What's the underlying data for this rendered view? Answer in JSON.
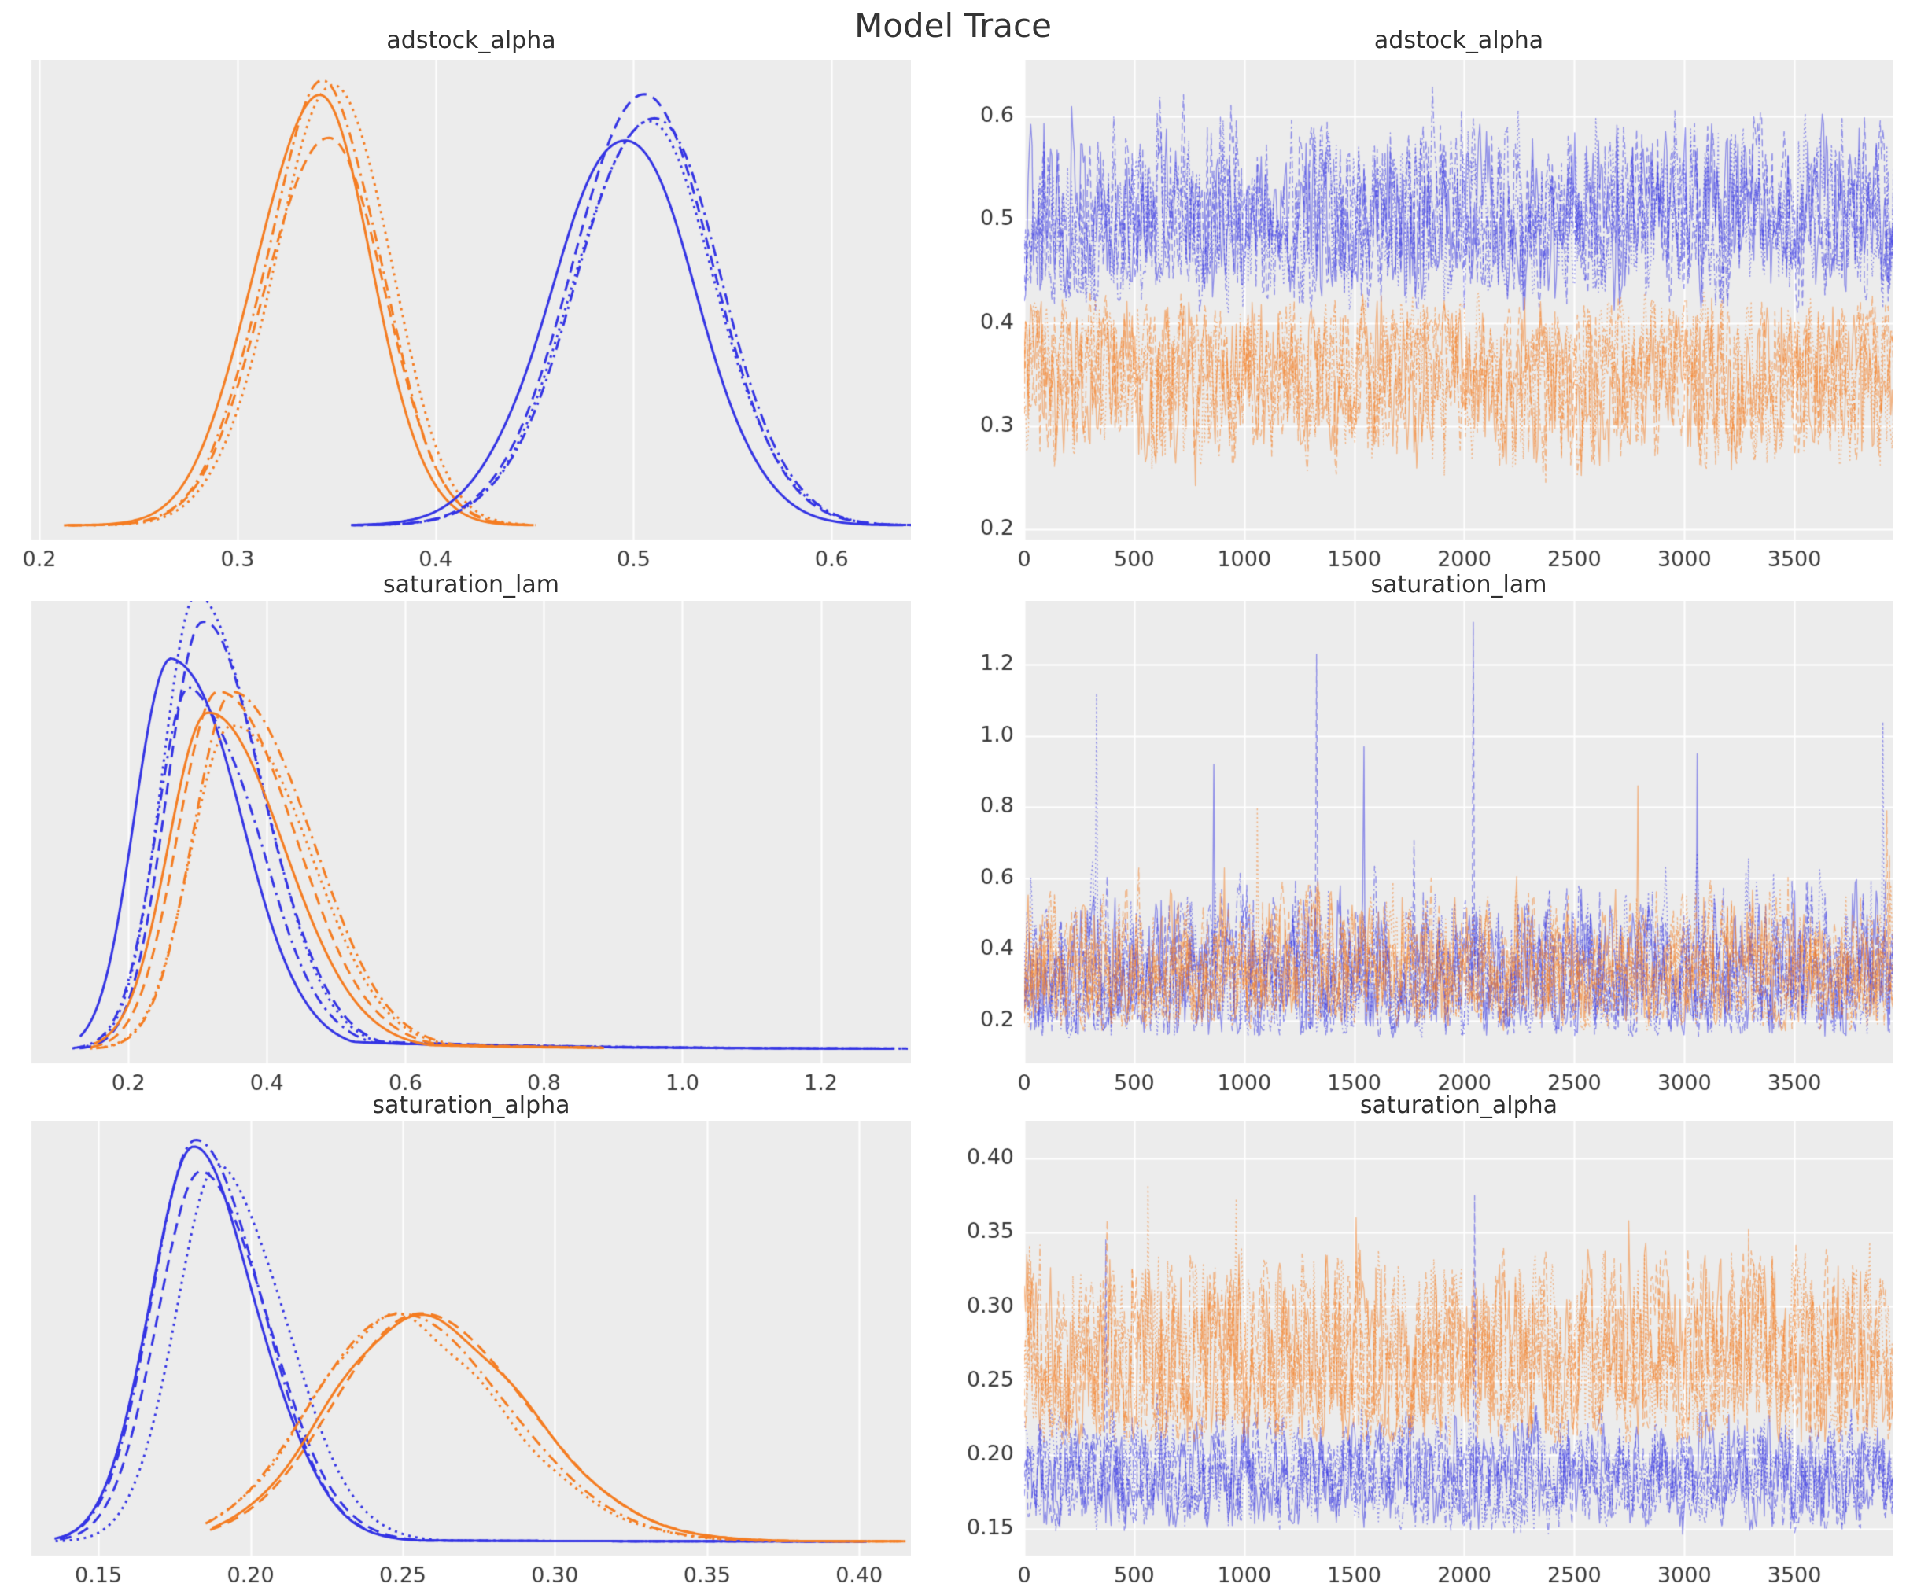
{
  "title": "Model Trace",
  "style": {
    "figure_bg": "#ffffff",
    "axes_bg": "#ececec",
    "grid_color": "#ffffff",
    "title_color": "#2f2f2f",
    "tick_color": "#3a3a3a",
    "chain_colors": {
      "blue": "#3434e4",
      "orange": "#f57d22"
    },
    "linestyles": [
      "solid",
      "dashed",
      "dashdot",
      "dotted"
    ],
    "trace_alpha": 0.5
  },
  "chart_data": [
    {
      "id": "density-adstock_alpha",
      "type": "line",
      "kind": "kde",
      "title": "adstock_alpha",
      "xlabel": "",
      "ylabel": "",
      "grid": "vertical",
      "legend": "none",
      "chains_per_series": 4,
      "xlim": [
        0.196,
        0.64
      ],
      "xticks": [
        0.2,
        0.3,
        0.4,
        0.5,
        0.6
      ],
      "xtick_format": 1,
      "jitter_h": 0.05,
      "jitter_x": 0.008,
      "series": [
        {
          "name": "chain-orange",
          "color": "orange",
          "peak": 0.345,
          "sd_left": 0.031,
          "sd_right": 0.027,
          "height": 1.0,
          "start": 0.215,
          "end": 0.447
        },
        {
          "name": "chain-blue",
          "color": "blue",
          "peak": 0.503,
          "sd_left": 0.037,
          "sd_right": 0.035,
          "height": 0.96,
          "start": 0.357,
          "end": 0.637
        }
      ]
    },
    {
      "id": "trace-adstock_alpha",
      "type": "line",
      "kind": "trace",
      "title": "adstock_alpha",
      "xlabel": "",
      "ylabel": "",
      "grid": "both",
      "legend": "none",
      "chains_per_series": 4,
      "xlim": [
        0,
        3950
      ],
      "xticks": [
        0,
        500,
        1000,
        1500,
        2000,
        2500,
        3000,
        3500
      ],
      "xtick_format": 0,
      "ylim": [
        0.19,
        0.655
      ],
      "yticks": [
        0.2,
        0.3,
        0.4,
        0.5,
        0.6
      ],
      "ytick_format": 1,
      "series": [
        {
          "name": "chain-blue",
          "color": "blue",
          "mean": 0.502,
          "sd": 0.04,
          "band": [
            0.405,
            0.638
          ],
          "spike_prob": 0,
          "spike_scale": 0,
          "spikes": []
        },
        {
          "name": "chain-orange",
          "color": "orange",
          "mean": 0.347,
          "sd": 0.037,
          "band": [
            0.224,
            0.434
          ],
          "spike_prob": 0,
          "spike_scale": 0,
          "spikes": []
        }
      ]
    },
    {
      "id": "density-saturation_lam",
      "type": "line",
      "kind": "kde",
      "title": "saturation_lam",
      "xlabel": "",
      "ylabel": "",
      "grid": "vertical",
      "legend": "none",
      "chains_per_series": 4,
      "xlim": [
        0.06,
        1.33
      ],
      "xticks": [
        0.2,
        0.4,
        0.6,
        0.8,
        1.0,
        1.2
      ],
      "xtick_format": 1,
      "jitter_h": 0.12,
      "jitter_x": 0.03,
      "series": [
        {
          "name": "chain-blue",
          "color": "blue",
          "peak": 0.285,
          "sd_left": 0.05,
          "sd_right": 0.092,
          "height": 1.0,
          "start": 0.125,
          "end": 1.315,
          "tail": {
            "amp": 0.045,
            "len": 0.28
          }
        },
        {
          "name": "chain-orange",
          "color": "orange",
          "peak": 0.335,
          "sd_left": 0.057,
          "sd_right": 0.108,
          "height": 0.93,
          "start": 0.148,
          "end": 0.875,
          "tail": {
            "amp": 0.05,
            "len": 0.22
          }
        }
      ]
    },
    {
      "id": "trace-saturation_lam",
      "type": "line",
      "kind": "trace",
      "title": "saturation_lam",
      "xlabel": "",
      "ylabel": "",
      "grid": "both",
      "legend": "none",
      "chains_per_series": 4,
      "xlim": [
        0,
        3950
      ],
      "xticks": [
        0,
        500,
        1000,
        1500,
        2000,
        2500,
        3000,
        3500
      ],
      "xtick_format": 0,
      "ylim": [
        0.08,
        1.38
      ],
      "yticks": [
        0.2,
        0.4,
        0.6,
        0.8,
        1.0,
        1.2
      ],
      "ytick_format": 1,
      "series": [
        {
          "name": "chain-blue",
          "color": "blue",
          "mean": 0.325,
          "sd": 0.095,
          "band": [
            0.148,
            0.78
          ],
          "spike_prob": 0.015,
          "spike_scale": 0.3,
          "spikes": [
            {
              "x": 330,
              "y": 1.12,
              "c": 3
            },
            {
              "x": 860,
              "y": 0.92,
              "c": 0
            },
            {
              "x": 1330,
              "y": 1.23,
              "c": 1
            },
            {
              "x": 1545,
              "y": 0.97,
              "c": 0
            },
            {
              "x": 2040,
              "y": 1.32,
              "c": 1
            },
            {
              "x": 3060,
              "y": 0.95,
              "c": 0
            },
            {
              "x": 3900,
              "y": 1.04,
              "c": 3
            }
          ]
        },
        {
          "name": "chain-orange",
          "color": "orange",
          "mean": 0.34,
          "sd": 0.085,
          "band": [
            0.168,
            0.73
          ],
          "spike_prob": 0.012,
          "spike_scale": 0.22,
          "spikes": [
            {
              "x": 1060,
              "y": 0.8,
              "c": 3
            },
            {
              "x": 2790,
              "y": 0.86,
              "c": 0
            },
            {
              "x": 3920,
              "y": 0.79,
              "c": 1
            }
          ]
        }
      ]
    },
    {
      "id": "density-saturation_alpha",
      "type": "line",
      "kind": "kde",
      "title": "saturation_alpha",
      "xlabel": "",
      "ylabel": "",
      "grid": "vertical",
      "legend": "none",
      "chains_per_series": 4,
      "xlim": [
        0.128,
        0.417
      ],
      "xticks": [
        0.15,
        0.2,
        0.25,
        0.3,
        0.35,
        0.4
      ],
      "xtick_format": 2,
      "jitter_h": 0.05,
      "jitter_x": 0.006,
      "series": [
        {
          "name": "chain-blue",
          "color": "blue",
          "peak": 0.1845,
          "sd_left": 0.0145,
          "sd_right": 0.0215,
          "height": 1.0,
          "start": 0.137,
          "end": 0.403,
          "tail": {
            "amp": 0.012,
            "len": 0.05
          }
        },
        {
          "name": "chain-orange",
          "color": "orange",
          "peak": 0.2485,
          "sd_left": 0.0275,
          "sd_right": 0.036,
          "height": 0.585,
          "start": 0.186,
          "end": 0.414,
          "tail": {
            "amp": 0.02,
            "len": 0.05
          }
        }
      ]
    },
    {
      "id": "trace-saturation_alpha",
      "type": "line",
      "kind": "trace",
      "title": "saturation_alpha",
      "xlabel": "",
      "ylabel": "",
      "grid": "both",
      "legend": "none",
      "chains_per_series": 4,
      "xlim": [
        0,
        3950
      ],
      "xticks": [
        0,
        500,
        1000,
        1500,
        2000,
        2500,
        3000,
        3500
      ],
      "xtick_format": 0,
      "ylim": [
        0.132,
        0.425
      ],
      "yticks": [
        0.15,
        0.2,
        0.25,
        0.3,
        0.35,
        0.4
      ],
      "ytick_format": 2,
      "series": [
        {
          "name": "chain-blue",
          "color": "blue",
          "mean": 0.186,
          "sd": 0.017,
          "band": [
            0.143,
            0.245
          ],
          "spike_prob": 0.006,
          "spike_scale": 0.05,
          "spikes": [
            {
              "x": 370,
              "y": 0.345,
              "c": 1
            },
            {
              "x": 2045,
              "y": 0.375,
              "c": 1
            }
          ]
        },
        {
          "name": "chain-orange",
          "color": "orange",
          "mean": 0.262,
          "sd": 0.033,
          "band": [
            0.206,
            0.352
          ],
          "spike_prob": 0.012,
          "spike_scale": 0.06,
          "spikes": [
            {
              "x": 560,
              "y": 0.382,
              "c": 3
            },
            {
              "x": 965,
              "y": 0.373,
              "c": 3
            },
            {
              "x": 1510,
              "y": 0.36,
              "c": 0
            },
            {
              "x": 2750,
              "y": 0.358,
              "c": 0
            },
            {
              "x": 3290,
              "y": 0.352,
              "c": 2
            }
          ]
        }
      ]
    }
  ]
}
